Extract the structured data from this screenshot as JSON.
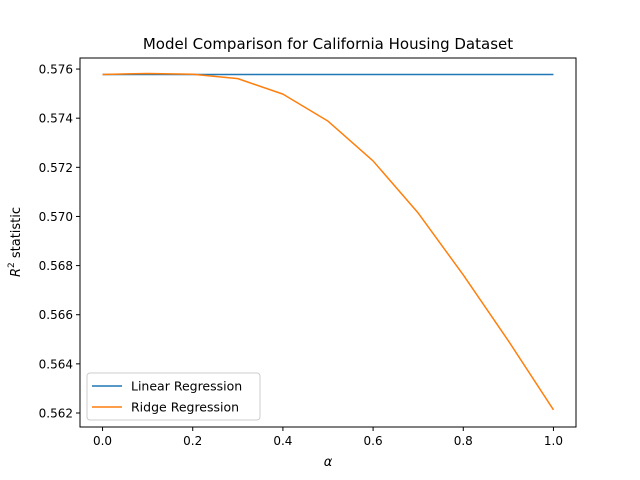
{
  "chart_data": {
    "type": "line",
    "title": "Model Comparison for California Housing Dataset",
    "xlabel": "α",
    "ylabel": {
      "base": "R",
      "sup": "2",
      "rest": " statistic"
    },
    "x": [
      0.0,
      0.1,
      0.2,
      0.3,
      0.4,
      0.5,
      0.6,
      0.7,
      0.8,
      0.9,
      1.0
    ],
    "xlim": [
      -0.05,
      1.05
    ],
    "ylim": [
      0.56143,
      0.57645
    ],
    "xticks": [
      0.0,
      0.2,
      0.4,
      0.6,
      0.8,
      1.0
    ],
    "xtick_labels": [
      "0.0",
      "0.2",
      "0.4",
      "0.6",
      "0.8",
      "1.0"
    ],
    "yticks": [
      0.562,
      0.564,
      0.566,
      0.568,
      0.57,
      0.572,
      0.574,
      0.576
    ],
    "ytick_labels": [
      "0.562",
      "0.564",
      "0.566",
      "0.568",
      "0.570",
      "0.572",
      "0.574",
      "0.576"
    ],
    "grid": false,
    "legend_position": "lower-left",
    "series": [
      {
        "name": "Linear Regression",
        "color": "#1f77b4",
        "values": [
          0.57578,
          0.57578,
          0.57578,
          0.57578,
          0.57578,
          0.57578,
          0.57578,
          0.57578,
          0.57578,
          0.57578,
          0.57578
        ]
      },
      {
        "name": "Ridge Regression",
        "color": "#ff7f0e",
        "values": [
          0.57578,
          0.57582,
          0.57579,
          0.57561,
          0.57498,
          0.57388,
          0.57226,
          0.57014,
          0.56762,
          0.56494,
          0.56213
        ]
      }
    ]
  }
}
